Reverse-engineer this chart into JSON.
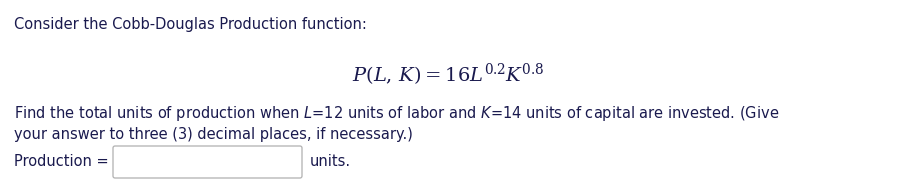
{
  "bg_color": "#ffffff",
  "text_color": "#1a1a4e",
  "title_text": "Consider the Cobb-Douglas Production function:",
  "body_text_line1_pre": "Find the total units of production when ",
  "body_L": "L",
  "body_text_line1_mid": "=12 units of labor and ",
  "body_K": "K",
  "body_text_line1_post": "=14 units of capital are invested. (Give",
  "body_text_line2": "your answer to three (3) decimal places, if necessary.)",
  "prod_label": "Production =",
  "units_label": "units.",
  "title_fontsize": 10.5,
  "formula_fontsize": 14,
  "body_fontsize": 10.5,
  "prod_fontsize": 10.5,
  "box_edgecolor": "#b0b0b0",
  "box_facecolor": "#ffffff"
}
